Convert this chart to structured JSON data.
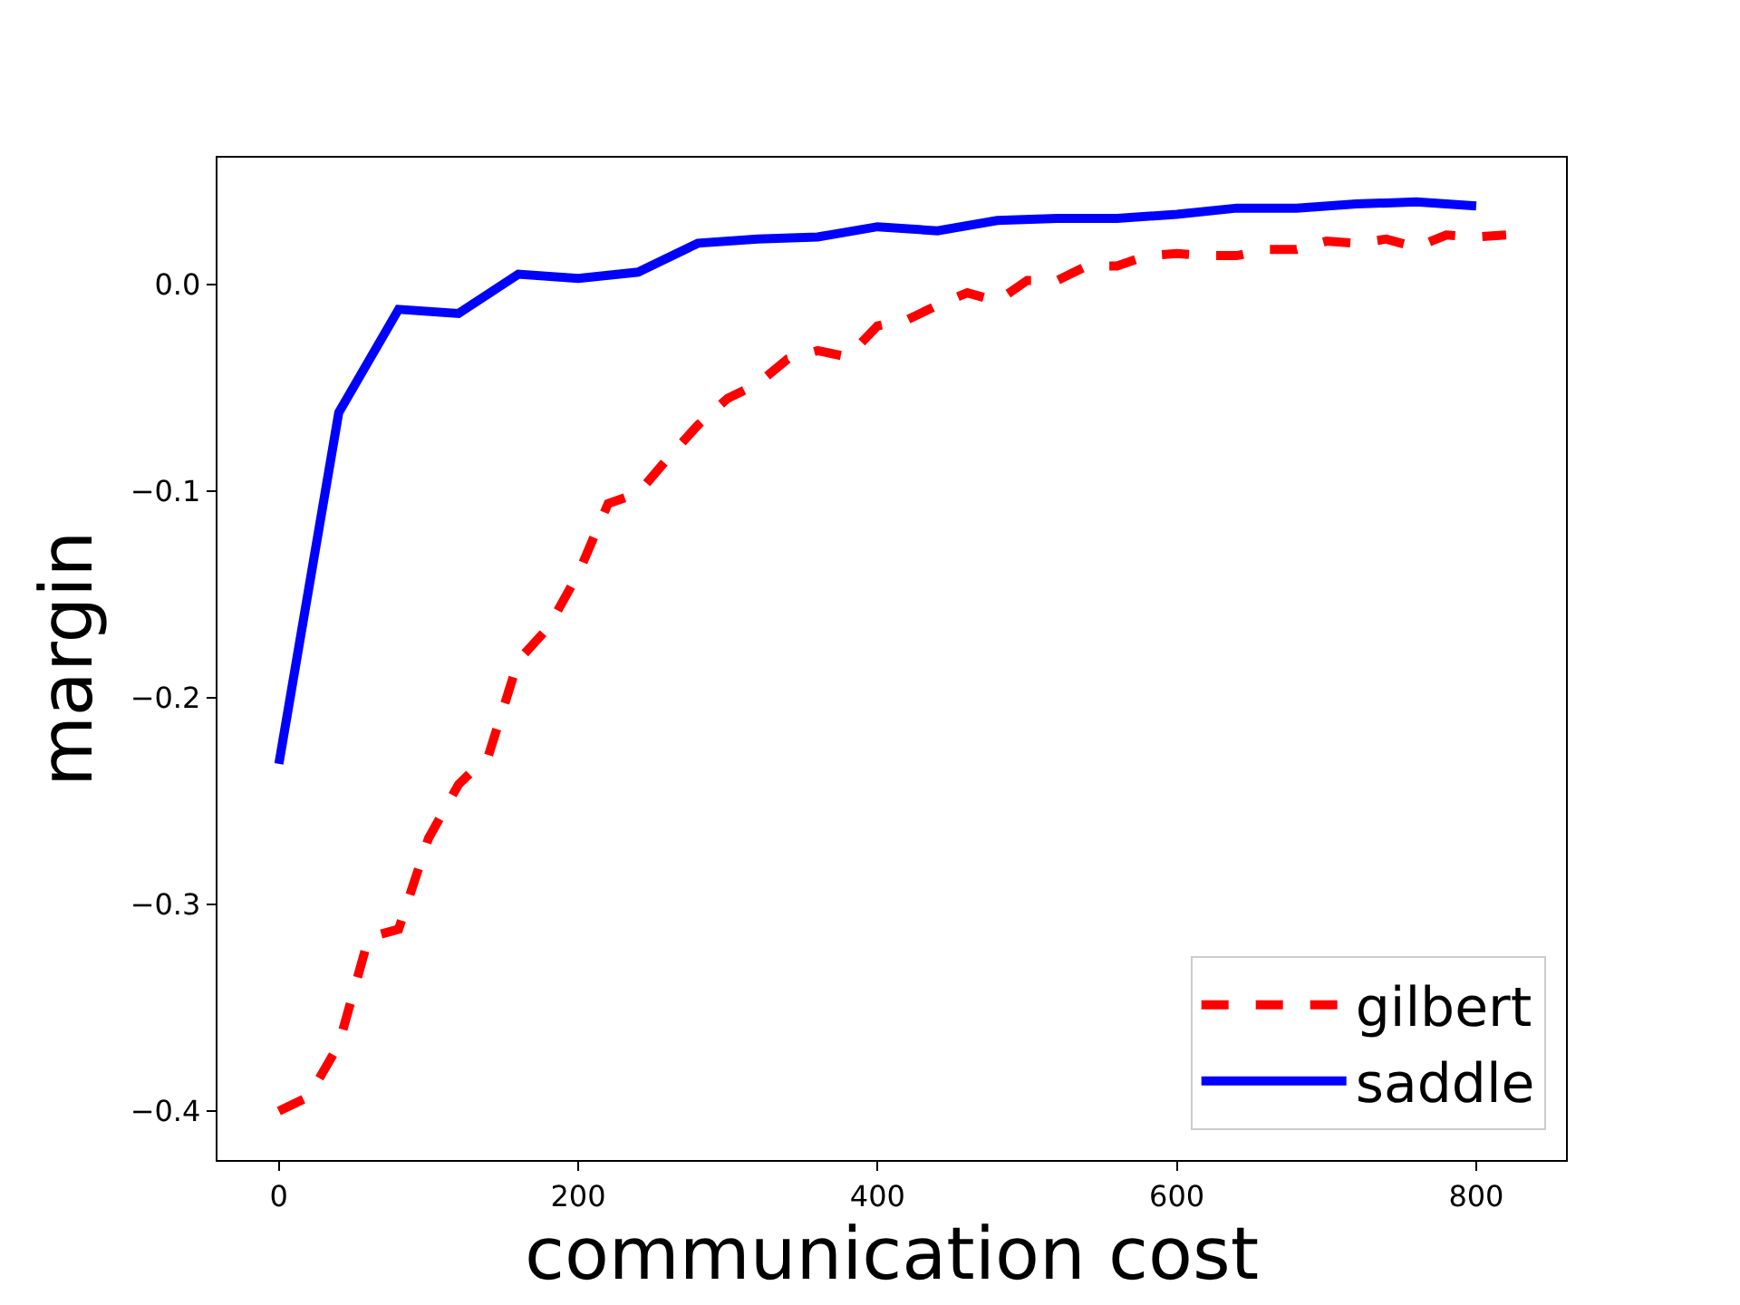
{
  "chart_data": {
    "type": "line",
    "xlabel": "communication cost",
    "ylabel": "margin",
    "xlim": [
      -41,
      860
    ],
    "ylim": [
      -0.4237,
      0.0614
    ],
    "xticks": [
      0,
      200,
      400,
      600,
      800
    ],
    "yticks": [
      {
        "value": -0.4,
        "label": "−0.4"
      },
      {
        "value": -0.3,
        "label": "−0.3"
      },
      {
        "value": -0.2,
        "label": "−0.2"
      },
      {
        "value": -0.1,
        "label": "−0.1"
      },
      {
        "value": 0.0,
        "label": "0.0"
      }
    ],
    "legend": "bottom right",
    "series": [
      {
        "name": "gilbert",
        "color": "#ff0000",
        "line_style": "dashed",
        "x": [
          0,
          20,
          40,
          60,
          80,
          100,
          120,
          140,
          160,
          180,
          200,
          220,
          240,
          260,
          280,
          300,
          320,
          340,
          360,
          380,
          400,
          420,
          440,
          460,
          480,
          500,
          520,
          540,
          560,
          580,
          600,
          620,
          640,
          660,
          680,
          700,
          720,
          740,
          760,
          780,
          800,
          820
        ],
        "values": [
          -0.4,
          -0.393,
          -0.368,
          -0.316,
          -0.312,
          -0.268,
          -0.242,
          -0.228,
          -0.182,
          -0.166,
          -0.14,
          -0.106,
          -0.101,
          -0.084,
          -0.068,
          -0.055,
          -0.048,
          -0.036,
          -0.032,
          -0.035,
          -0.02,
          -0.017,
          -0.01,
          -0.004,
          -0.008,
          0.002,
          0.002,
          0.009,
          0.009,
          0.014,
          0.015,
          0.014,
          0.014,
          0.017,
          0.017,
          0.021,
          0.02,
          0.022,
          0.018,
          0.024,
          0.023,
          0.024
        ]
      },
      {
        "name": "saddle",
        "color": "#0000ff",
        "line_style": "solid",
        "x": [
          0,
          40,
          80,
          120,
          160,
          200,
          240,
          280,
          320,
          360,
          400,
          440,
          480,
          520,
          560,
          600,
          640,
          680,
          720,
          760,
          800
        ],
        "values": [
          -0.232,
          -0.062,
          -0.012,
          -0.014,
          0.005,
          0.003,
          0.006,
          0.02,
          0.022,
          0.023,
          0.028,
          0.026,
          0.031,
          0.032,
          0.032,
          0.034,
          0.037,
          0.037,
          0.039,
          0.04,
          0.038
        ]
      }
    ]
  }
}
